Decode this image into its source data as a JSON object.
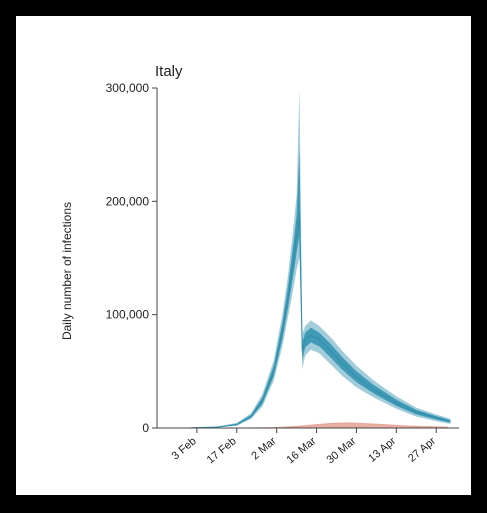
{
  "chart_data": {
    "type": "area",
    "title": "Italy",
    "ylabel": "Daily number of infections",
    "xlabel": "",
    "ylim": [
      0,
      300000
    ],
    "yticks": [
      0,
      100000,
      200000,
      300000
    ],
    "ytick_labels": [
      "0",
      "100,000",
      "200,000",
      "300,000"
    ],
    "xlim": [
      "2020-01-20",
      "2020-05-05"
    ],
    "xticks": [
      "2020-02-03",
      "2020-02-17",
      "2020-03-02",
      "2020-03-16",
      "2020-03-30",
      "2020-04-13",
      "2020-04-27"
    ],
    "xtick_labels": [
      "3 Feb",
      "17 Feb",
      "2 Mar",
      "16 Mar",
      "30 Mar",
      "13 Apr",
      "27 Apr"
    ],
    "series": [
      {
        "color": "#2f8fae",
        "x": [
          "2020-02-01",
          "2020-02-10",
          "2020-02-17",
          "2020-02-22",
          "2020-02-26",
          "2020-03-01",
          "2020-03-04",
          "2020-03-06",
          "2020-03-08",
          "2020-03-09",
          "2020-03-10",
          "2020-03-11",
          "2020-03-12",
          "2020-03-14",
          "2020-03-17",
          "2020-03-21",
          "2020-03-25",
          "2020-03-30",
          "2020-04-05",
          "2020-04-13",
          "2020-04-20",
          "2020-04-27",
          "2020-05-02"
        ],
        "y": [
          200,
          800,
          3000,
          10000,
          24000,
          50000,
          85000,
          115000,
          150000,
          170000,
          190000,
          68000,
          78000,
          82000,
          78000,
          68000,
          57000,
          45000,
          34000,
          22000,
          14000,
          9000,
          6000
        ],
        "y_low": [
          100,
          500,
          2000,
          8000,
          19000,
          42000,
          72000,
          98000,
          125000,
          140000,
          150000,
          52000,
          64000,
          69000,
          66000,
          56000,
          46000,
          36000,
          27000,
          17000,
          10000,
          6000,
          3500
        ],
        "y_high": [
          400,
          1200,
          4500,
          13000,
          30000,
          60000,
          100000,
          135000,
          180000,
          205000,
          300000,
          83000,
          90000,
          95000,
          90000,
          80000,
          68000,
          55000,
          42000,
          28000,
          18000,
          12000,
          8000
        ]
      },
      {
        "color": "#e8a59a",
        "x": [
          "2020-02-20",
          "2020-03-01",
          "2020-03-10",
          "2020-03-16",
          "2020-03-22",
          "2020-03-28",
          "2020-04-03",
          "2020-04-10",
          "2020-04-17",
          "2020-04-24",
          "2020-05-01"
        ],
        "y": [
          0,
          300,
          1500,
          3000,
          4200,
          4500,
          3800,
          2800,
          1800,
          1200,
          800
        ]
      }
    ]
  }
}
